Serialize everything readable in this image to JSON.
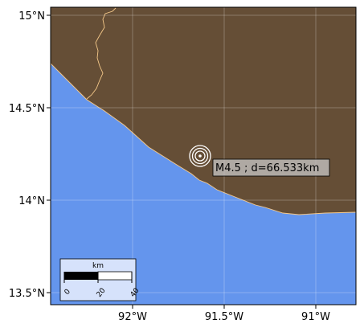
{
  "map": {
    "longitude_ticks": [
      "92°W",
      "91.5°W",
      "91°W"
    ],
    "latitude_ticks": [
      "15°N",
      "14.5°N",
      "14°N",
      "13.5°N"
    ],
    "colors": {
      "ocean": "#6495ED",
      "land": "#654E36",
      "coastline": "#F5C98A",
      "gridline": "#FFFFFF",
      "marker": "#FFFFFF",
      "annotation_box": "#C8C8C8"
    },
    "event": {
      "label": "M4.5 ; d=66.533km",
      "longitude": -91.62,
      "latitude": 14.24,
      "marker": "concentric-rings"
    },
    "scale_bar": {
      "unit": "km",
      "ticks": [
        "0",
        "20",
        "40"
      ],
      "placement": "bottom-left"
    }
  }
}
